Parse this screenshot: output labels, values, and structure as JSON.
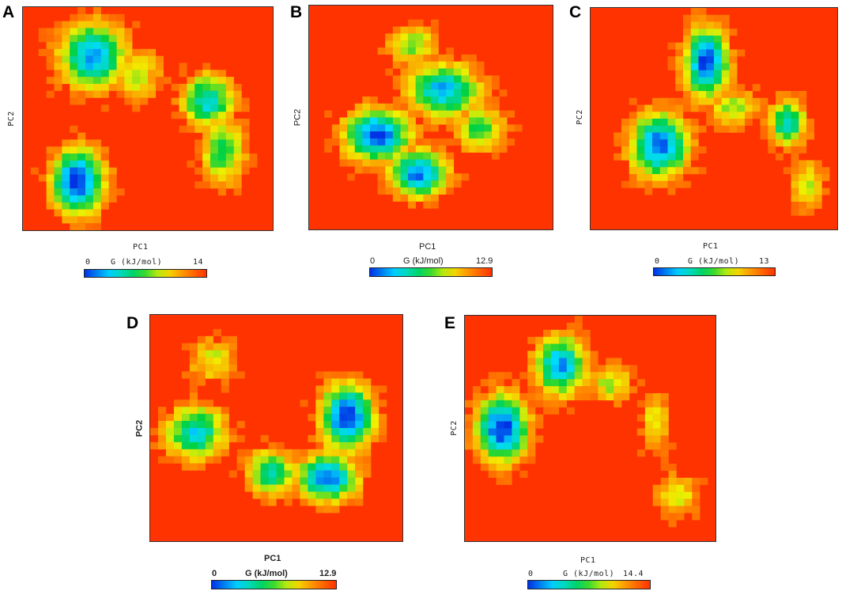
{
  "chart_data": [
    {
      "id": "A",
      "type": "heatmap",
      "panel_label": "A",
      "xlabel": "PC1",
      "ylabel": "PC2",
      "colorbar": {
        "title": "G (kJ/mol)",
        "min_label": "0",
        "max_label": "14",
        "min": 0,
        "max": 14
      },
      "basins": [
        {
          "x": 0.22,
          "y": 0.78,
          "depth": 0.97,
          "sx": 0.07,
          "sy": 0.1
        },
        {
          "x": 0.28,
          "y": 0.22,
          "depth": 0.8,
          "sx": 0.09,
          "sy": 0.1
        },
        {
          "x": 0.45,
          "y": 0.3,
          "depth": 0.4,
          "sx": 0.07,
          "sy": 0.08
        },
        {
          "x": 0.74,
          "y": 0.42,
          "depth": 0.7,
          "sx": 0.07,
          "sy": 0.08
        },
        {
          "x": 0.8,
          "y": 0.65,
          "depth": 0.55,
          "sx": 0.06,
          "sy": 0.1
        }
      ]
    },
    {
      "id": "B",
      "type": "heatmap",
      "panel_label": "B",
      "xlabel": "PC1",
      "ylabel": "PC2",
      "colorbar": {
        "title": "G (kJ/mol)",
        "min_label": "0",
        "max_label": "12.9",
        "min": 0,
        "max": 12.9
      },
      "basins": [
        {
          "x": 0.28,
          "y": 0.58,
          "depth": 0.92,
          "sx": 0.09,
          "sy": 0.08
        },
        {
          "x": 0.45,
          "y": 0.75,
          "depth": 0.85,
          "sx": 0.08,
          "sy": 0.07
        },
        {
          "x": 0.55,
          "y": 0.38,
          "depth": 0.78,
          "sx": 0.1,
          "sy": 0.08
        },
        {
          "x": 0.42,
          "y": 0.18,
          "depth": 0.45,
          "sx": 0.07,
          "sy": 0.06
        },
        {
          "x": 0.7,
          "y": 0.55,
          "depth": 0.5,
          "sx": 0.07,
          "sy": 0.07
        }
      ]
    },
    {
      "id": "C",
      "type": "heatmap",
      "panel_label": "C",
      "xlabel": "PC1",
      "ylabel": "PC2",
      "colorbar": {
        "title": "G (kJ/mol)",
        "min_label": "0",
        "max_label": "13",
        "min": 0,
        "max": 13
      },
      "basins": [
        {
          "x": 0.47,
          "y": 0.25,
          "depth": 0.92,
          "sx": 0.06,
          "sy": 0.11
        },
        {
          "x": 0.28,
          "y": 0.62,
          "depth": 0.88,
          "sx": 0.08,
          "sy": 0.1
        },
        {
          "x": 0.58,
          "y": 0.45,
          "depth": 0.4,
          "sx": 0.07,
          "sy": 0.06
        },
        {
          "x": 0.8,
          "y": 0.52,
          "depth": 0.7,
          "sx": 0.05,
          "sy": 0.07
        },
        {
          "x": 0.88,
          "y": 0.8,
          "depth": 0.4,
          "sx": 0.05,
          "sy": 0.08
        }
      ]
    },
    {
      "id": "D",
      "type": "heatmap",
      "panel_label": "D",
      "xlabel": "PC1",
      "ylabel": "PC2",
      "colorbar": {
        "title": "G (kJ/mol)",
        "min_label": "0",
        "max_label": "12.9",
        "min": 0,
        "max": 12.9
      },
      "basins": [
        {
          "x": 0.78,
          "y": 0.45,
          "depth": 0.95,
          "sx": 0.07,
          "sy": 0.1
        },
        {
          "x": 0.7,
          "y": 0.72,
          "depth": 0.88,
          "sx": 0.08,
          "sy": 0.07
        },
        {
          "x": 0.48,
          "y": 0.7,
          "depth": 0.6,
          "sx": 0.07,
          "sy": 0.07
        },
        {
          "x": 0.18,
          "y": 0.52,
          "depth": 0.7,
          "sx": 0.08,
          "sy": 0.08
        },
        {
          "x": 0.25,
          "y": 0.2,
          "depth": 0.35,
          "sx": 0.07,
          "sy": 0.07
        }
      ]
    },
    {
      "id": "E",
      "type": "heatmap",
      "panel_label": "E",
      "xlabel": "PC1",
      "ylabel": "PC2",
      "colorbar": {
        "title": "G (kJ/mol)",
        "min_label": "0",
        "max_label": "14.4",
        "min": 0,
        "max": 14.4
      },
      "basins": [
        {
          "x": 0.15,
          "y": 0.5,
          "depth": 0.95,
          "sx": 0.07,
          "sy": 0.1
        },
        {
          "x": 0.38,
          "y": 0.22,
          "depth": 0.8,
          "sx": 0.07,
          "sy": 0.09
        },
        {
          "x": 0.58,
          "y": 0.3,
          "depth": 0.4,
          "sx": 0.06,
          "sy": 0.06
        },
        {
          "x": 0.76,
          "y": 0.48,
          "depth": 0.35,
          "sx": 0.04,
          "sy": 0.09
        },
        {
          "x": 0.85,
          "y": 0.8,
          "depth": 0.35,
          "sx": 0.06,
          "sy": 0.07
        }
      ]
    }
  ]
}
